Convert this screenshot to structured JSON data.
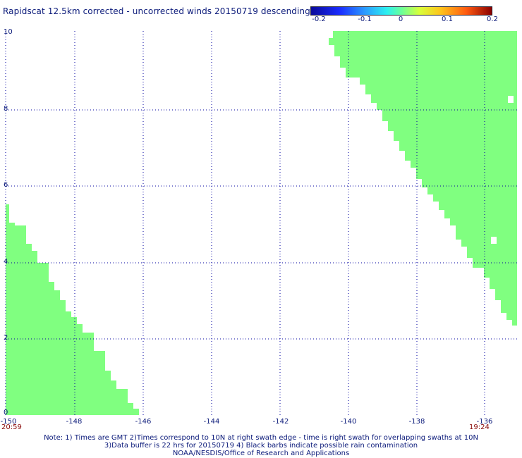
{
  "title": "Rapidscat 12.5km corrected - uncorrected winds 20150719 descending",
  "colorbar": {
    "tick_labels": [
      "-0.2",
      "-0.1",
      "0",
      "0.1",
      "0.2"
    ]
  },
  "map": {
    "x_ticks": [
      "-150",
      "-148",
      "-146",
      "-144",
      "-142",
      "-140",
      "-138",
      "-136"
    ],
    "y_ticks": [
      "10",
      "8",
      "6",
      "4",
      "2",
      "0"
    ],
    "swath_color": "#80ff80",
    "grid_color": "#0000a0"
  },
  "times": {
    "left": "20:59",
    "right": "19:24"
  },
  "notes": {
    "line1": "Note: 1) Times are GMT 2)Times correspond to 10N at right swath edge - time is right swath for overlapping swaths at 10N",
    "line2": "3)Data buffer is 22 hrs for 20150719 4) Black barbs indicate possible rain contamination",
    "line3": "NOAA/NESDIS/Office of Research and Applications"
  }
}
